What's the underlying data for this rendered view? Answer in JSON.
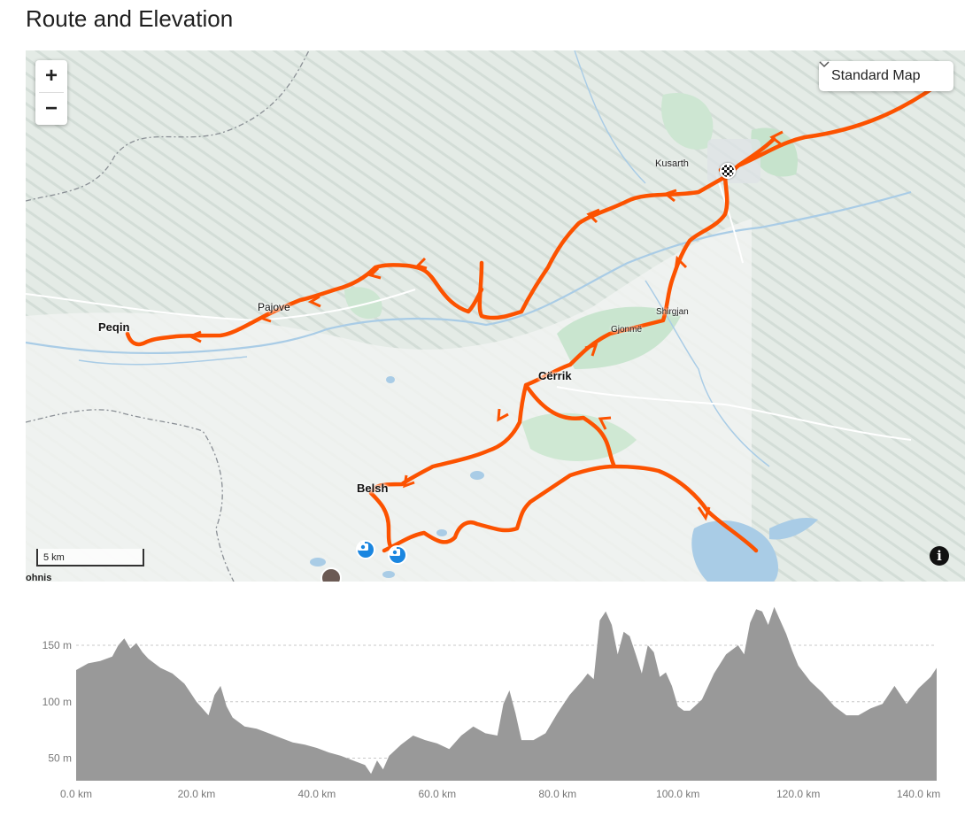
{
  "page": {
    "title": "Route and Elevation"
  },
  "map": {
    "style_selector": {
      "label": "Standard Map",
      "icon": "chevron-down-icon"
    },
    "zoom": {
      "in_label": "+",
      "out_label": "−"
    },
    "scale_label": "5 km",
    "info_label": "i",
    "places": {
      "peqin": "Peqin",
      "pajove": "Pajove",
      "kusarth": "Kusarth",
      "shirgjan": "Shirgjan",
      "gjonme": "Gjonmë",
      "cerrik": "Cërrik",
      "belsh": "Belsh",
      "cutoff": "ohnis"
    },
    "colors": {
      "route": "#fc5200",
      "water": "#a9cce6",
      "photo_marker": "#1a86e0"
    }
  },
  "chart_data": {
    "type": "area",
    "title": "",
    "xlabel": "",
    "ylabel": "",
    "x_unit": "km",
    "y_unit": "m",
    "xlim": [
      0,
      143
    ],
    "ylim": [
      30,
      190
    ],
    "x_ticks": [
      0,
      20,
      40,
      60,
      80,
      100,
      120,
      140
    ],
    "x_tick_labels": [
      "0.0 km",
      "20.0 km",
      "40.0 km",
      "60.0 km",
      "80.0 km",
      "100.0 km",
      "120.0 km",
      "140.0 km"
    ],
    "y_ticks": [
      50,
      100,
      150
    ],
    "y_tick_labels": [
      "50 m",
      "100 m",
      "150 m"
    ],
    "grid": "horizontal dashed",
    "fill_color": "#999999",
    "x": [
      0,
      2,
      4,
      6,
      7,
      8,
      9,
      10,
      11,
      12,
      14,
      16,
      18,
      19,
      20,
      22,
      23,
      24,
      25,
      26,
      28,
      30,
      32,
      34,
      36,
      38,
      40,
      42,
      44,
      46,
      48,
      49,
      50,
      51,
      52,
      54,
      56,
      58,
      60,
      62,
      64,
      66,
      68,
      70,
      71,
      72,
      73,
      74,
      76,
      78,
      80,
      82,
      84,
      85,
      86,
      87,
      88,
      89,
      90,
      91,
      92,
      93,
      94,
      95,
      96,
      97,
      98,
      99,
      100,
      101,
      102,
      104,
      106,
      108,
      110,
      111,
      112,
      113,
      114,
      115,
      116,
      117,
      118,
      119,
      120,
      122,
      124,
      126,
      128,
      130,
      132,
      134,
      136,
      138,
      140,
      142,
      143
    ],
    "y": [
      128,
      134,
      136,
      140,
      150,
      156,
      147,
      152,
      144,
      138,
      130,
      125,
      116,
      108,
      100,
      88,
      106,
      114,
      96,
      86,
      78,
      76,
      72,
      68,
      64,
      62,
      59,
      55,
      52,
      48,
      44,
      36,
      48,
      40,
      52,
      62,
      70,
      66,
      63,
      58,
      70,
      78,
      72,
      70,
      98,
      110,
      90,
      66,
      66,
      72,
      90,
      106,
      118,
      125,
      120,
      172,
      180,
      168,
      142,
      162,
      158,
      142,
      125,
      150,
      144,
      122,
      126,
      114,
      96,
      92,
      92,
      102,
      125,
      142,
      150,
      142,
      170,
      182,
      180,
      168,
      184,
      172,
      160,
      145,
      132,
      118,
      108,
      96,
      88,
      88,
      94,
      98,
      114,
      98,
      112,
      122,
      130
    ]
  }
}
